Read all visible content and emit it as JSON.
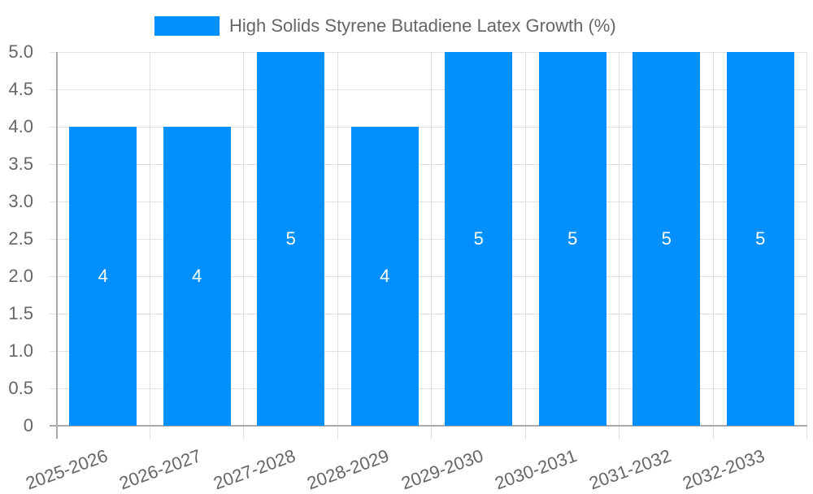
{
  "chart_data": {
    "type": "bar",
    "title": "",
    "legend": [
      "High Solids Styrene Butadiene Latex Growth (%)"
    ],
    "legend_position": "top",
    "categories": [
      "2025-2026",
      "2026-2027",
      "2027-2028",
      "2028-2029",
      "2029-2030",
      "2030-2031",
      "2031-2032",
      "2032-2033"
    ],
    "series": [
      {
        "name": "High Solids Styrene Butadiene Latex Growth (%)",
        "values": [
          4,
          4,
          5,
          4,
          5,
          5,
          5,
          5
        ],
        "color": "#038ffc"
      }
    ],
    "data_labels": [
      "4",
      "4",
      "5",
      "4",
      "5",
      "5",
      "5",
      "5"
    ],
    "xlabel": "",
    "ylabel": "",
    "ylim": [
      0,
      5
    ],
    "yticks": [
      "0",
      "0.5",
      "1.0",
      "1.5",
      "2.0",
      "2.5",
      "3.0",
      "3.5",
      "4.0",
      "4.5",
      "5.0"
    ],
    "grid": true
  }
}
